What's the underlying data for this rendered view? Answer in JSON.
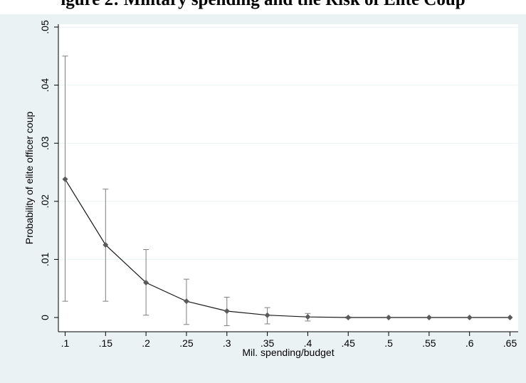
{
  "header": {
    "title_text": "igure 2: Military spending and the Risk of Elite Coup"
  },
  "colors": {
    "outer_background": "#eaf2f3",
    "plot_background": "#ffffff",
    "gridline": "#eaf2f3",
    "line": "#1a1a1a",
    "marker": "#5a5a5a",
    "errorbar": "#7f7f7f"
  },
  "chart_data": {
    "type": "line",
    "title": "",
    "xlabel": "Mil. spending/budget",
    "ylabel": "Probability of elite officer coup",
    "x": [
      0.1,
      0.15,
      0.2,
      0.25,
      0.3,
      0.35,
      0.4,
      0.45,
      0.5,
      0.55,
      0.6,
      0.65
    ],
    "series": [
      {
        "values": [
          0.0238,
          0.0125,
          0.006,
          0.0028,
          0.0011,
          0.0004,
          0.0001,
          0.0,
          0.0,
          0.0,
          0.0,
          0.0
        ],
        "ci_lower": [
          0.0028,
          0.0028,
          0.0004,
          -0.0012,
          -0.0014,
          -0.0011,
          -0.0006,
          -0.0001,
          0.0,
          0.0,
          0.0,
          0.0
        ],
        "ci_upper": [
          0.045,
          0.0221,
          0.0117,
          0.0066,
          0.0035,
          0.0017,
          0.0007,
          0.0001,
          0.0,
          0.0,
          0.0,
          0.0
        ]
      }
    ],
    "xticks": [
      ".1",
      ".15",
      ".2",
      ".25",
      ".3",
      ".35",
      ".4",
      ".45",
      ".5",
      ".55",
      ".6",
      ".65"
    ],
    "yticks": [
      "0",
      ".01",
      ".02",
      ".03",
      ".04",
      ".05"
    ],
    "ytick_values": [
      0,
      0.01,
      0.02,
      0.03,
      0.04,
      0.05
    ],
    "xlim": [
      0.09,
      0.66
    ],
    "ylim": [
      -0.0005,
      0.05
    ],
    "grid": true,
    "legend": "none"
  }
}
